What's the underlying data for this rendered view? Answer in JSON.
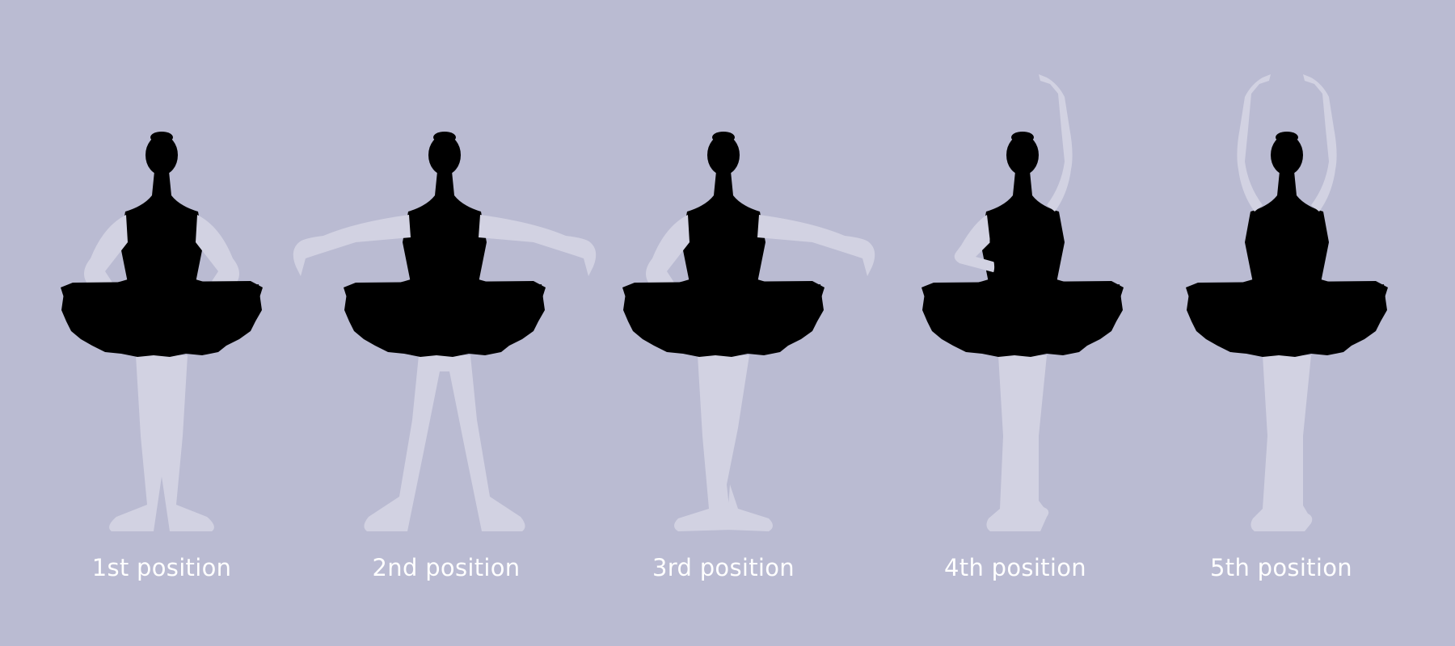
{
  "positions": [
    {
      "label": "1st position",
      "arms": "bras bas"
    },
    {
      "label": "2nd position",
      "arms": "second"
    },
    {
      "label": "3rd position",
      "arms": "third"
    },
    {
      "label": "4th position",
      "arms": "fourth"
    },
    {
      "label": "5th position",
      "arms": "fifth"
    }
  ],
  "colors": {
    "background": "#babbd2",
    "silhouette": "#d2d2e2",
    "tutu": "#ffffff",
    "caption": "#ffffff"
  }
}
